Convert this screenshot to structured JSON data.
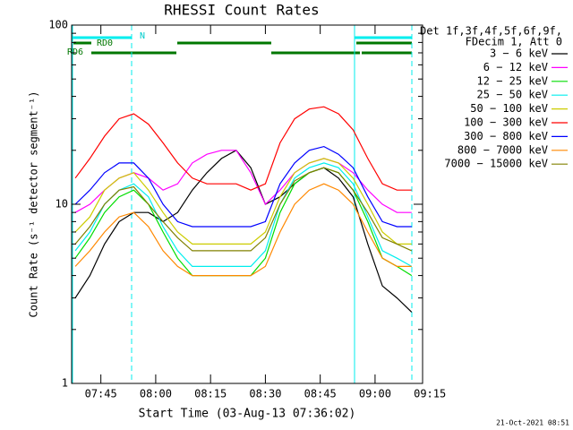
{
  "chart_data": {
    "type": "line",
    "title": "RHESSI Count Rates",
    "x_label": "Start Time (03-Aug-13 07:36:02)",
    "y_label": "Count Rate (s⁻¹ detector segment⁻¹)",
    "legend_header": [
      "Det 1f,3f,4f,5f,6f,9f,",
      "FDecim 1, Att 0"
    ],
    "footer": "21-Oct-2021 08:51",
    "annotations": [
      "N",
      "RD0",
      "RD6"
    ],
    "log_y": true,
    "ylim": [
      1,
      100
    ],
    "yticks": [
      1,
      10,
      100
    ],
    "xlim": [
      "07:37",
      "09:13"
    ],
    "xticks": [
      "07:45",
      "08:00",
      "08:15",
      "08:30",
      "08:45",
      "09:00",
      "09:15"
    ],
    "x": [
      "07:38",
      "07:42",
      "07:46",
      "07:50",
      "07:54",
      "07:58",
      "08:02",
      "08:06",
      "08:10",
      "08:14",
      "08:18",
      "08:22",
      "08:26",
      "08:30",
      "08:34",
      "08:38",
      "08:42",
      "08:46",
      "08:50",
      "08:54",
      "08:58",
      "09:02",
      "09:06",
      "09:10"
    ],
    "series": [
      {
        "name": "3 − 6 keV",
        "color": "#000000",
        "values": [
          3,
          4,
          6,
          8,
          9,
          9,
          8,
          9,
          12,
          15,
          18,
          20,
          16,
          10,
          11,
          13,
          15,
          16,
          14,
          11,
          6,
          3.5,
          3,
          2.5
        ]
      },
      {
        "name": "6 − 12 keV",
        "color": "#ff00ff",
        "values": [
          9,
          10,
          12,
          14,
          15,
          14,
          12,
          13,
          17,
          19,
          20,
          20,
          15,
          10,
          12,
          15,
          17,
          18,
          17,
          15,
          12,
          10,
          9,
          9
        ]
      },
      {
        "name": "12 − 25 keV",
        "color": "#00dd00",
        "values": [
          5,
          6.5,
          9,
          11,
          12,
          10,
          7,
          5,
          4,
          4,
          4,
          4,
          4,
          5,
          9,
          13,
          15,
          16,
          15,
          12,
          8,
          5,
          4.5,
          4
        ]
      },
      {
        "name": "25 − 50 keV",
        "color": "#00eeee",
        "values": [
          5.5,
          7,
          10,
          12,
          13,
          11,
          7.5,
          5.5,
          4.5,
          4.5,
          4.5,
          4.5,
          4.5,
          5.5,
          10,
          14,
          16,
          17,
          16,
          13,
          8.5,
          5.5,
          5,
          4.5
        ]
      },
      {
        "name": "50 − 100 keV",
        "color": "#cccc00",
        "values": [
          7,
          8.5,
          12,
          14,
          15,
          12,
          9,
          7,
          6,
          6,
          6,
          6,
          6,
          7,
          11,
          15,
          17,
          18,
          17,
          14,
          10,
          7,
          6,
          6
        ]
      },
      {
        "name": "100 − 300 keV",
        "color": "#ff0000",
        "values": [
          14,
          18,
          24,
          30,
          32,
          28,
          22,
          17,
          14,
          13,
          13,
          13,
          12,
          13,
          22,
          30,
          34,
          35,
          32,
          26,
          18,
          13,
          12,
          12
        ]
      },
      {
        "name": "300 − 800 keV",
        "color": "#0000ff",
        "values": [
          10,
          12,
          15,
          17,
          17,
          14,
          10,
          8,
          7.5,
          7.5,
          7.5,
          7.5,
          7.5,
          8,
          13,
          17,
          20,
          21,
          19,
          16,
          11,
          8,
          7.5,
          7.5
        ]
      },
      {
        "name": "800 − 7000 keV",
        "color": "#ff8800",
        "values": [
          4.5,
          5.5,
          7,
          8.5,
          9,
          7.5,
          5.5,
          4.5,
          4,
          4,
          4,
          4,
          4,
          4.5,
          7,
          10,
          12,
          13,
          12,
          10,
          7,
          5,
          4.5,
          4.5
        ]
      },
      {
        "name": "7000 − 15000 keV",
        "color": "#808000",
        "values": [
          6,
          7.5,
          10,
          12,
          12.5,
          10,
          8,
          6.5,
          5.5,
          5.5,
          5.5,
          5.5,
          5.5,
          6.5,
          10,
          13.5,
          15,
          16,
          15,
          12,
          9,
          6.5,
          6,
          5.5
        ]
      }
    ]
  }
}
